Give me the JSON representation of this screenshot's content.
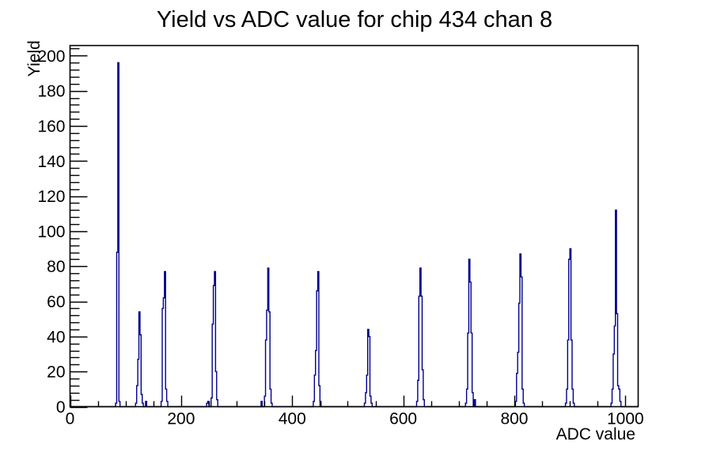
{
  "chart_data": {
    "type": "bar",
    "style": "root-histogram-step-outline",
    "title": "Yield vs ADC value for chip 434 chan 8",
    "xlabel": "ADC value",
    "ylabel": "Yield",
    "xlim": [
      0,
      1023
    ],
    "ylim": [
      0,
      205.8
    ],
    "grid": false,
    "legend": false,
    "bin_width": 2,
    "x_major_ticks": [
      0,
      200,
      400,
      600,
      800,
      1000
    ],
    "x_minor_tick_step": 50,
    "y_major_ticks": [
      0,
      20,
      40,
      60,
      80,
      100,
      120,
      140,
      160,
      180,
      200
    ],
    "y_minor_tick_step": 4,
    "line_color": "#00008c",
    "frame_color": "#000000",
    "text_color": "#000000",
    "bins": [
      [
        82,
        2
      ],
      [
        84,
        88
      ],
      [
        86,
        196
      ],
      [
        88,
        3
      ],
      [
        118,
        2
      ],
      [
        120,
        12
      ],
      [
        122,
        27
      ],
      [
        124,
        54
      ],
      [
        126,
        41
      ],
      [
        128,
        7
      ],
      [
        130,
        2
      ],
      [
        136,
        3
      ],
      [
        164,
        3
      ],
      [
        166,
        56
      ],
      [
        168,
        62
      ],
      [
        170,
        77
      ],
      [
        172,
        10
      ],
      [
        174,
        3
      ],
      [
        246,
        2
      ],
      [
        248,
        3
      ],
      [
        254,
        5
      ],
      [
        256,
        47
      ],
      [
        258,
        69
      ],
      [
        260,
        77
      ],
      [
        262,
        20
      ],
      [
        264,
        4
      ],
      [
        344,
        3
      ],
      [
        350,
        6
      ],
      [
        352,
        38
      ],
      [
        354,
        55
      ],
      [
        356,
        79
      ],
      [
        358,
        54
      ],
      [
        360,
        10
      ],
      [
        362,
        2
      ],
      [
        438,
        3
      ],
      [
        440,
        18
      ],
      [
        442,
        32
      ],
      [
        444,
        66
      ],
      [
        446,
        77
      ],
      [
        448,
        12
      ],
      [
        450,
        3
      ],
      [
        530,
        2
      ],
      [
        532,
        8
      ],
      [
        534,
        18
      ],
      [
        536,
        44
      ],
      [
        538,
        40
      ],
      [
        540,
        6
      ],
      [
        542,
        2
      ],
      [
        624,
        3
      ],
      [
        626,
        15
      ],
      [
        628,
        63
      ],
      [
        630,
        79
      ],
      [
        632,
        63
      ],
      [
        634,
        21
      ],
      [
        636,
        4
      ],
      [
        712,
        2
      ],
      [
        714,
        10
      ],
      [
        716,
        42
      ],
      [
        718,
        84
      ],
      [
        720,
        71
      ],
      [
        722,
        42
      ],
      [
        724,
        8
      ],
      [
        728,
        4
      ],
      [
        802,
        3
      ],
      [
        804,
        19
      ],
      [
        806,
        31
      ],
      [
        808,
        59
      ],
      [
        810,
        87
      ],
      [
        812,
        74
      ],
      [
        814,
        10
      ],
      [
        816,
        2
      ],
      [
        892,
        2
      ],
      [
        894,
        10
      ],
      [
        896,
        38
      ],
      [
        898,
        84
      ],
      [
        900,
        90
      ],
      [
        902,
        38
      ],
      [
        904,
        10
      ],
      [
        906,
        2
      ],
      [
        974,
        2
      ],
      [
        976,
        10
      ],
      [
        978,
        30
      ],
      [
        980,
        46
      ],
      [
        982,
        112
      ],
      [
        984,
        53
      ],
      [
        986,
        12
      ],
      [
        988,
        10
      ],
      [
        990,
        3
      ]
    ]
  }
}
